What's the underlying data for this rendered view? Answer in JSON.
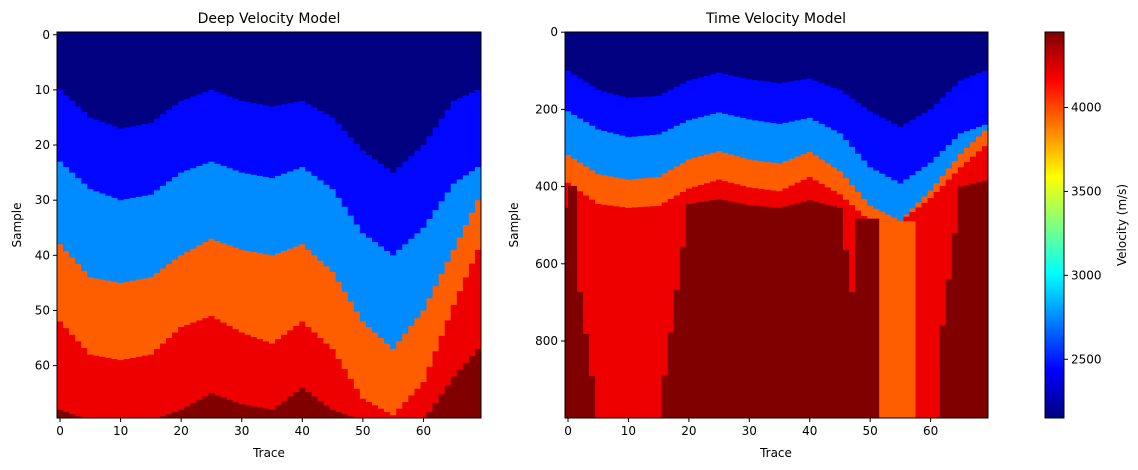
{
  "chart_data": [
    {
      "type": "heatmap",
      "title": "Deep Velocity Model",
      "xlabel": "Trace",
      "ylabel": "Sample",
      "xlim": [
        -0.5,
        69.5
      ],
      "ylim": [
        69.5,
        -0.5
      ],
      "xticks": [
        0,
        10,
        20,
        30,
        40,
        50,
        60
      ],
      "yticks": [
        0,
        10,
        20,
        30,
        40,
        50,
        60
      ],
      "layer_velocities": [
        2150,
        2450,
        2750,
        3950,
        4200,
        4450
      ],
      "boundaries": {
        "x": [
          0,
          5,
          10,
          15,
          20,
          25,
          30,
          35,
          40,
          45,
          50,
          55,
          60,
          65,
          69
        ],
        "b1": [
          10,
          15,
          17,
          16,
          12,
          10,
          12,
          13,
          12,
          15,
          21,
          25,
          20,
          12,
          10
        ],
        "b2": [
          23,
          28,
          30,
          29,
          25,
          23,
          25,
          26,
          24,
          28,
          36,
          40,
          35,
          27,
          24
        ],
        "b3": [
          38,
          44,
          45,
          44,
          40,
          37,
          39,
          40,
          38,
          43,
          52,
          57,
          50,
          39,
          30
        ],
        "b4": [
          52,
          58,
          59,
          58,
          53,
          51,
          54,
          56,
          52,
          57,
          66,
          69,
          63,
          49,
          39
        ],
        "b5": [
          68,
          70,
          70,
          70,
          68,
          65,
          67,
          68,
          64,
          68,
          70,
          70,
          70,
          62,
          57
        ]
      }
    },
    {
      "type": "heatmap",
      "title": "Time Velocity Model",
      "xlabel": "Trace",
      "ylabel": "Sample",
      "xlim": [
        -0.5,
        69.5
      ],
      "ylim": [
        999.5,
        -0.5
      ],
      "xticks": [
        0,
        10,
        20,
        30,
        40,
        50,
        60
      ],
      "yticks": [
        0,
        200,
        400,
        600,
        800
      ],
      "layer_velocities": [
        2150,
        2450,
        2750,
        3950,
        4200,
        4450
      ],
      "boundaries": {
        "x": [
          0,
          5,
          10,
          15,
          20,
          25,
          30,
          35,
          40,
          45,
          50,
          55,
          60,
          65,
          69
        ],
        "b1": [
          100,
          150,
          170,
          165,
          125,
          105,
          122,
          132,
          120,
          150,
          205,
          245,
          200,
          125,
          100
        ],
        "b2": [
          205,
          252,
          272,
          265,
          228,
          208,
          226,
          238,
          222,
          262,
          350,
          392,
          338,
          262,
          240
        ],
        "b3": [
          318,
          368,
          382,
          375,
          330,
          308,
          330,
          340,
          310,
          360,
          450,
          488,
          410,
          315,
          255
        ],
        "b4": [
          390,
          445,
          455,
          450,
          405,
          382,
          402,
          412,
          375,
          420,
          490,
          490,
          430,
          350,
          295
        ],
        "b5": [
          455,
          1000,
          1000,
          1000,
          445,
          432,
          448,
          455,
          435,
          455,
          1000,
          1000,
          1000,
          400,
          385
        ]
      },
      "vertical_bands": [
        {
          "x0": 0,
          "x1": 1.5,
          "layer": 5
        },
        {
          "x0": 47.5,
          "x1": 51.5,
          "layer": 5
        },
        {
          "x0": 51.5,
          "x1": 57.5,
          "layer": 3
        },
        {
          "x0": 57.5,
          "x1": 61.5,
          "layer": 4
        }
      ]
    }
  ],
  "colorbar": {
    "label": "Velocity (m/s)",
    "colormap": "jet",
    "vmin": 2150,
    "vmax": 4450,
    "ticks": [
      2500,
      3000,
      3500,
      4000
    ]
  }
}
